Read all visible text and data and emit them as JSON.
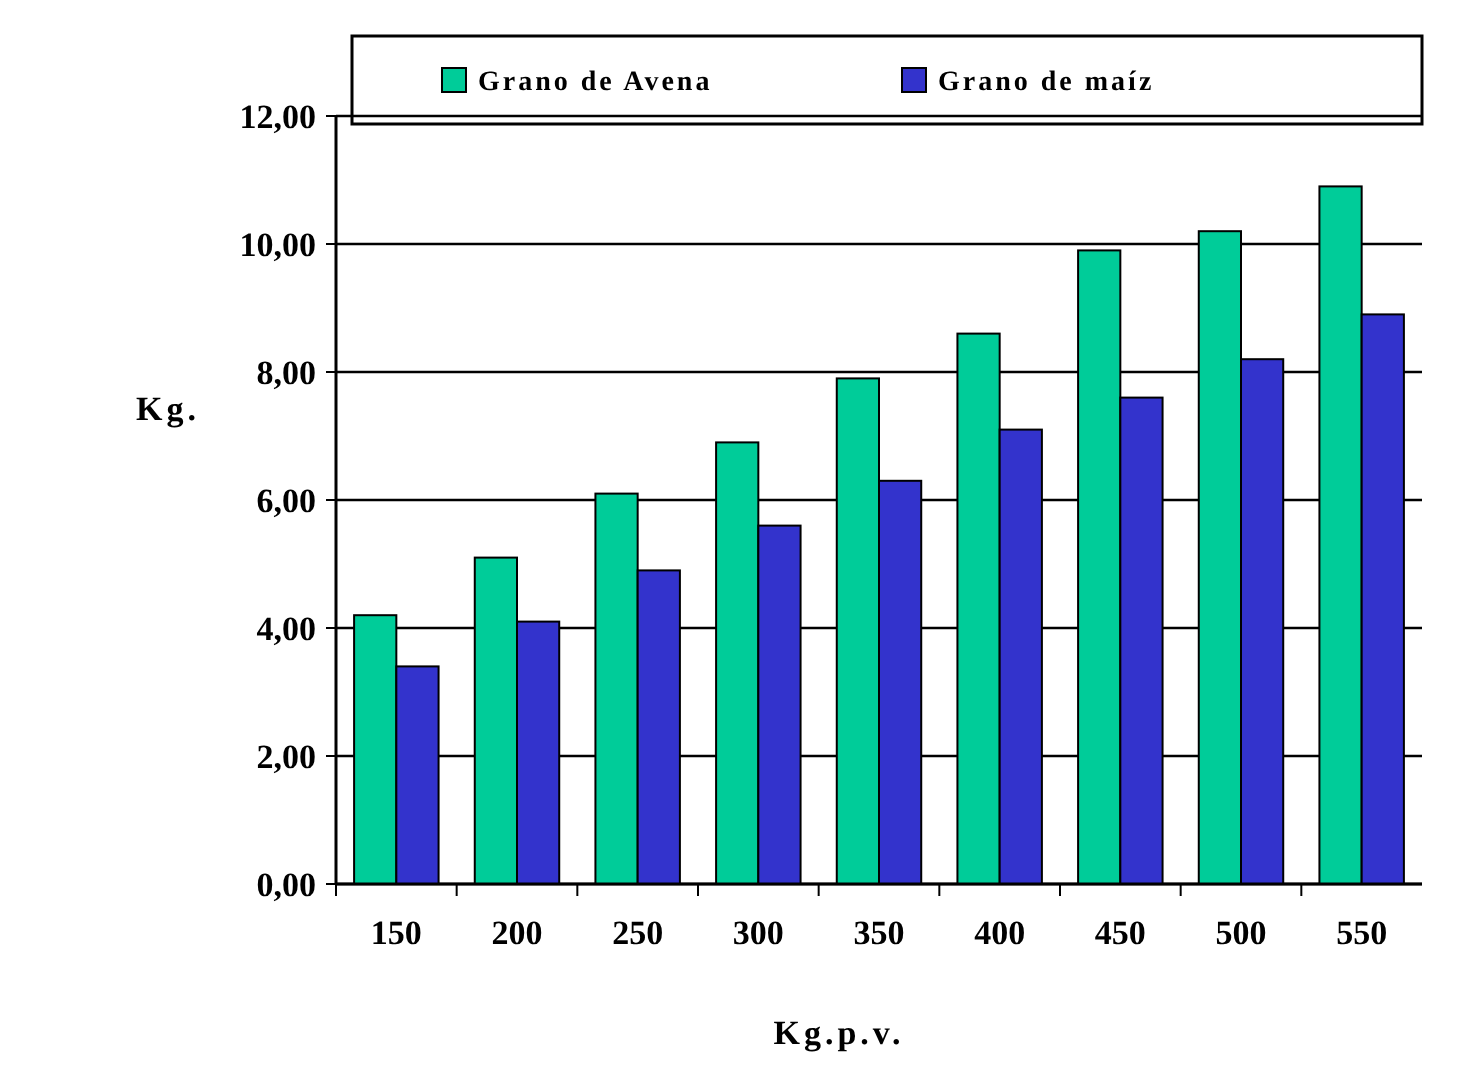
{
  "chart_data": {
    "type": "bar",
    "xlabel": "Kg.p.v.",
    "ylabel": "Kg.",
    "categories": [
      "150",
      "200",
      "250",
      "300",
      "350",
      "400",
      "450",
      "500",
      "550"
    ],
    "series": [
      {
        "name": "Grano de Avena",
        "color": "#00cc99",
        "values": [
          4.2,
          5.1,
          6.1,
          6.9,
          7.9,
          8.6,
          9.9,
          10.2,
          10.9
        ]
      },
      {
        "name": "Grano de maíz",
        "color": "#3333cc",
        "values": [
          3.4,
          4.1,
          4.9,
          5.6,
          6.3,
          7.1,
          7.6,
          8.2,
          8.9
        ]
      }
    ],
    "ylim": [
      0,
      12
    ],
    "yticks": [
      {
        "value": 0,
        "label": "0,00"
      },
      {
        "value": 2,
        "label": "2,00"
      },
      {
        "value": 4,
        "label": "4,00"
      },
      {
        "value": 6,
        "label": "6,00"
      },
      {
        "value": 8,
        "label": "8,00"
      },
      {
        "value": 10,
        "label": "10,00"
      },
      {
        "value": 12,
        "label": "12,00"
      }
    ],
    "grid": "y",
    "legend": "top"
  }
}
